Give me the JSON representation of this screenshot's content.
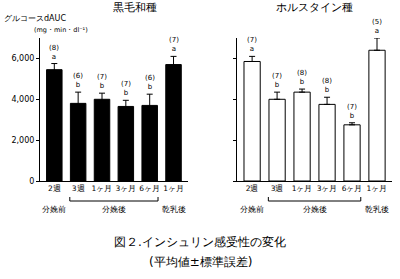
{
  "caption": {
    "title": "図２.インシュリン感受性の変化",
    "subtitle": "(平均値±標準誤差)"
  },
  "chart_data": [
    {
      "type": "bar",
      "title": "黒毛和種",
      "ylabel": "グルコースdAUC",
      "yunit": "(mg・min・dl⁻¹)",
      "categories": [
        "2週",
        "3週",
        "1ヶ月",
        "3ヶ月",
        "6ヶ月",
        "1ヶ月"
      ],
      "values": [
        5450,
        3800,
        4000,
        3650,
        3700,
        5700
      ],
      "errors": [
        300,
        550,
        300,
        300,
        550,
        400
      ],
      "n": [
        "(8)",
        "(6)",
        "(7)",
        "(7)",
        "(6)",
        "(7)"
      ],
      "letters": [
        "a",
        "b",
        "b",
        "b",
        "b",
        "a"
      ],
      "groups": [
        {
          "label": "分娩前",
          "from": 0,
          "to": 0
        },
        {
          "label": "分娩後",
          "from": 1,
          "to": 4
        },
        {
          "label": "乾乳後",
          "from": 5,
          "to": 5
        }
      ],
      "color": "#000000",
      "ylim": [
        0,
        7000
      ],
      "yticks": [
        0,
        {
          "value": 2000,
          "label": "2,000"
        },
        {
          "value": 4000,
          "label": "4,000"
        },
        {
          "value": 6000,
          "label": "6,000"
        }
      ],
      "grid": false
    },
    {
      "type": "bar",
      "title": "ホルスタイン種",
      "categories": [
        "2週",
        "3週",
        "1ヶ月",
        "3ヶ月",
        "6ヶ月",
        "1ヶ月"
      ],
      "values": [
        5850,
        4000,
        4350,
        3750,
        2750,
        6400
      ],
      "errors": [
        250,
        350,
        150,
        350,
        100,
        600
      ],
      "n": [
        "(7)",
        "(7)",
        "(8)",
        "(8)",
        "(7)",
        "(5)"
      ],
      "letters": [
        "a",
        "b",
        "b",
        "b",
        "b",
        "a"
      ],
      "groups": [
        {
          "label": "分娩前",
          "from": 0,
          "to": 0
        },
        {
          "label": "分娩後",
          "from": 1,
          "to": 4
        },
        {
          "label": "乾乳後",
          "from": 5,
          "to": 5
        }
      ],
      "color": "#ffffff",
      "ylim": [
        0,
        7000
      ],
      "yticks": [
        0,
        {
          "value": 2000,
          "label": "2,000"
        },
        {
          "value": 4000,
          "label": "4,000"
        },
        {
          "value": 6000,
          "label": "6,000"
        }
      ],
      "tick_labels": "x",
      "grid": false
    }
  ]
}
